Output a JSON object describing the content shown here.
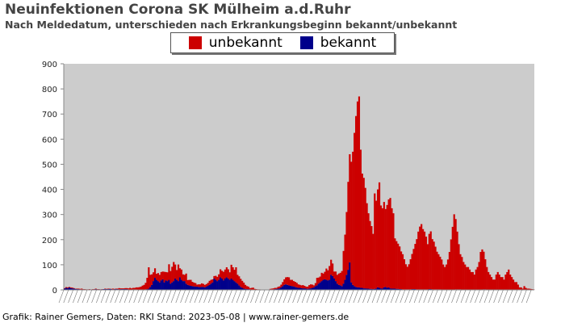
{
  "header": {
    "title": "Neuinfektionen Corona SK Mülheim a.d.Ruhr",
    "subtitle": "Nach Meldedatum, unterschieden nach Erkrankungsbeginn bekannt/unbekannt"
  },
  "footer": {
    "credit": "Grafik: Rainer Gemers, Daten: RKI Stand: 2023-05-08 | www.rainer-gemers.de"
  },
  "colors": {
    "unbekannt": "#cc0000",
    "bekannt": "#00008b",
    "plot_background": "#cccccc",
    "axis": "#888888"
  },
  "chart_data": {
    "type": "bar",
    "stacked": true,
    "ylim": [
      0,
      900
    ],
    "y_ticks": [
      "0",
      "100",
      "200",
      "300",
      "400",
      "500",
      "600",
      "700",
      "800",
      "900"
    ],
    "grid": false,
    "legend_placement": "top-center",
    "x_tick_labels": "dense, unreadable date labels",
    "series": [
      {
        "name": "unbekannt",
        "color": "#cc0000",
        "values": [
          2,
          3,
          4,
          2,
          3,
          3,
          2,
          1,
          2,
          2,
          2,
          3,
          1,
          1,
          1,
          1,
          1,
          0,
          1,
          1,
          2,
          1,
          1,
          0,
          1,
          0,
          2,
          1,
          2,
          1,
          1,
          3,
          1,
          2,
          2,
          5,
          3,
          3,
          3,
          4,
          4,
          4,
          7,
          5,
          6,
          6,
          8,
          9,
          10,
          12,
          16,
          19,
          26,
          45,
          85,
          48,
          42,
          35,
          38,
          24,
          32,
          30,
          33,
          31,
          42,
          33,
          35,
          62,
          50,
          62,
          76,
          56,
          39,
          66,
          36,
          41,
          27,
          25,
          40,
          19,
          22,
          24,
          17,
          15,
          14,
          8,
          10,
          11,
          14,
          12,
          10,
          10,
          12,
          16,
          15,
          12,
          10,
          16,
          17,
          22,
          32,
          31,
          34,
          36,
          40,
          37,
          30,
          55,
          50,
          45,
          60,
          35,
          36,
          32,
          28,
          24,
          16,
          12,
          10,
          5,
          7,
          8,
          3,
          2,
          2,
          2,
          1,
          1,
          1,
          0,
          0,
          0,
          2,
          3,
          4,
          5,
          4,
          7,
          8,
          11,
          16,
          22,
          28,
          31,
          32,
          24,
          25,
          21,
          20,
          18,
          14,
          12,
          11,
          13,
          10,
          8,
          9,
          14,
          16,
          13,
          8,
          12,
          30,
          24,
          23,
          33,
          25,
          30,
          45,
          40,
          55,
          60,
          50,
          28,
          38,
          35,
          45,
          50,
          60,
          130,
          180,
          250,
          350,
          430,
          480,
          530,
          610,
          680,
          740,
          760,
          550,
          455,
          440,
          400,
          340,
          300,
          270,
          250,
          220,
          380,
          350,
          390,
          420,
          330,
          320,
          340,
          310,
          330,
          350,
          360,
          320,
          300,
          200,
          190,
          180,
          170,
          150,
          140,
          120,
          100,
          90,
          100,
          120,
          140,
          160,
          180,
          200,
          230,
          250,
          260,
          240,
          230,
          210,
          180,
          220,
          230,
          200,
          190,
          170,
          150,
          140,
          130,
          120,
          100,
          90,
          100,
          120,
          150,
          200,
          250,
          300,
          280,
          230,
          180,
          140,
          130,
          110,
          100,
          90,
          90,
          80,
          70,
          70,
          60,
          80,
          90,
          110,
          150,
          160,
          150,
          120,
          90,
          70,
          60,
          50,
          40,
          40,
          60,
          70,
          60,
          50,
          50,
          40,
          60,
          70,
          80,
          60,
          50,
          40,
          30,
          30,
          20,
          10,
          10,
          5,
          15,
          8,
          5,
          5,
          4,
          3,
          2
        ]
      },
      {
        "name": "bekannt",
        "color": "#00008b",
        "values": [
          5,
          8,
          6,
          10,
          7,
          6,
          5,
          4,
          3,
          3,
          2,
          2,
          2,
          2,
          1,
          1,
          2,
          1,
          2,
          2,
          3,
          2,
          2,
          2,
          2,
          3,
          3,
          3,
          3,
          4,
          3,
          2,
          3,
          3,
          3,
          2,
          3,
          3,
          3,
          3,
          3,
          2,
          1,
          1,
          2,
          2,
          2,
          1,
          1,
          1,
          1,
          1,
          2,
          3,
          5,
          12,
          20,
          35,
          48,
          40,
          35,
          30,
          38,
          42,
          30,
          38,
          35,
          40,
          25,
          30,
          35,
          45,
          40,
          35,
          50,
          40,
          35,
          35,
          25,
          20,
          18,
          16,
          15,
          14,
          13,
          13,
          12,
          11,
          12,
          12,
          10,
          13,
          16,
          20,
          25,
          30,
          45,
          40,
          35,
          40,
          50,
          45,
          38,
          45,
          50,
          45,
          40,
          45,
          40,
          35,
          30,
          25,
          18,
          12,
          8,
          5,
          4,
          3,
          3,
          2,
          1,
          1,
          1,
          1,
          0,
          0,
          0,
          0,
          0,
          1,
          1,
          1,
          2,
          2,
          2,
          3,
          4,
          5,
          6,
          10,
          15,
          20,
          22,
          20,
          18,
          16,
          15,
          14,
          12,
          10,
          8,
          8,
          7,
          6,
          6,
          5,
          4,
          5,
          6,
          8,
          10,
          15,
          18,
          25,
          30,
          35,
          40,
          42,
          40,
          38,
          40,
          60,
          55,
          45,
          35,
          25,
          20,
          18,
          15,
          25,
          40,
          60,
          80,
          110,
          30,
          20,
          15,
          12,
          10,
          10,
          8,
          8,
          6,
          6,
          5,
          5,
          4,
          4,
          3,
          4,
          5,
          10,
          8,
          6,
          5,
          10,
          12,
          8,
          10,
          6,
          5,
          5,
          5,
          4,
          4,
          3,
          3,
          2,
          2,
          2,
          2,
          2,
          2,
          3,
          3,
          3,
          2,
          2,
          2,
          2,
          2,
          2,
          2,
          2,
          3,
          3,
          2,
          2,
          2,
          2,
          2,
          2,
          1,
          1,
          1,
          1,
          1,
          1,
          1,
          1,
          1,
          2,
          2,
          2,
          2,
          1,
          1,
          1,
          1,
          1,
          1,
          1,
          1,
          1,
          1,
          1,
          1,
          1,
          1,
          2,
          2,
          1,
          1,
          1,
          1,
          1,
          1,
          1,
          1,
          1,
          1,
          1,
          1,
          1,
          1,
          1,
          1,
          1,
          1,
          1,
          1,
          1,
          0,
          0,
          0,
          0,
          0,
          0,
          0,
          0,
          0,
          0
        ]
      }
    ]
  }
}
